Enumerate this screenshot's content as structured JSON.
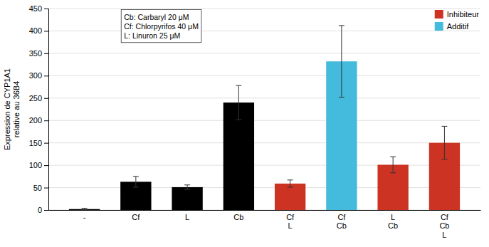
{
  "chart_data": {
    "type": "bar",
    "categories": [
      "-",
      "Cf",
      "L",
      "Cb",
      "Cf\nL",
      "Cf\nCb",
      "L\nCb",
      "Cf\nCb\nL"
    ],
    "values": [
      2,
      63,
      51,
      240,
      59,
      332,
      101,
      150
    ],
    "errors": [
      2,
      12,
      5,
      38,
      8,
      80,
      18,
      37
    ],
    "colors": [
      "#000000",
      "#000000",
      "#000000",
      "#000000",
      "#cc3322",
      "#44bbdd",
      "#cc3322",
      "#cc3322"
    ],
    "ylabel": "Expression de CYP1A1\nrelative au 36B4",
    "ylim": [
      0,
      450
    ],
    "yticks": [
      0,
      50,
      100,
      150,
      200,
      250,
      300,
      350,
      400,
      450
    ],
    "grid": true,
    "annotations": [
      "Cb: Carbaryl 20 μM\nCf: Chlorpyrifos 40 μM\nL: Linuron 25 μM"
    ],
    "legend": "upper right",
    "legend_entries": [
      {
        "name": "Inhibiteur",
        "color": "#cc3322"
      },
      {
        "name": "Additif",
        "color": "#44bbdd"
      }
    ]
  }
}
